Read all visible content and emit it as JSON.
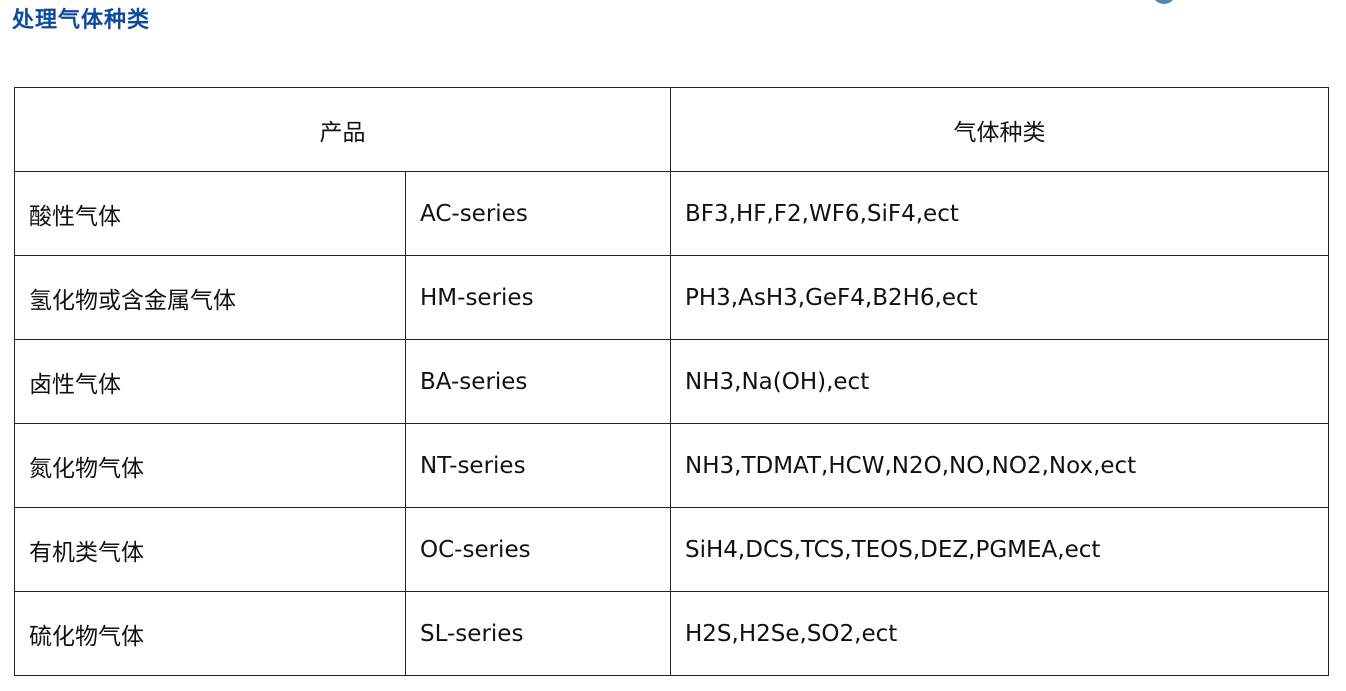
{
  "title": "处理气体种类",
  "table": {
    "headers": {
      "product": "产品",
      "gas_types": "气体种类"
    },
    "rows": [
      {
        "category": "酸性气体",
        "series": "AC-series",
        "gases": "BF3,HF,F2,WF6,SiF4,ect"
      },
      {
        "category": "氢化物或含金属气体",
        "series": "HM-series",
        "gases": "PH3,AsH3,GeF4,B2H6,ect"
      },
      {
        "category": "卤性气体",
        "series": "BA-series",
        "gases": "NH3,Na(OH),ect"
      },
      {
        "category": "氮化物气体",
        "series": "NT-series",
        "gases": "NH3,TDMAT,HCW,N2O,NO,NO2,Nox,ect"
      },
      {
        "category": "有机类气体",
        "series": "OC-series",
        "gases": "SiH4,DCS,TCS,TEOS,DEZ,PGMEA,ect"
      },
      {
        "category": "硫化物气体",
        "series": "SL-series",
        "gases": "H2S,H2Se,SO2,ect"
      }
    ]
  },
  "colors": {
    "title": "#0d4a9e",
    "border": "#222222"
  }
}
